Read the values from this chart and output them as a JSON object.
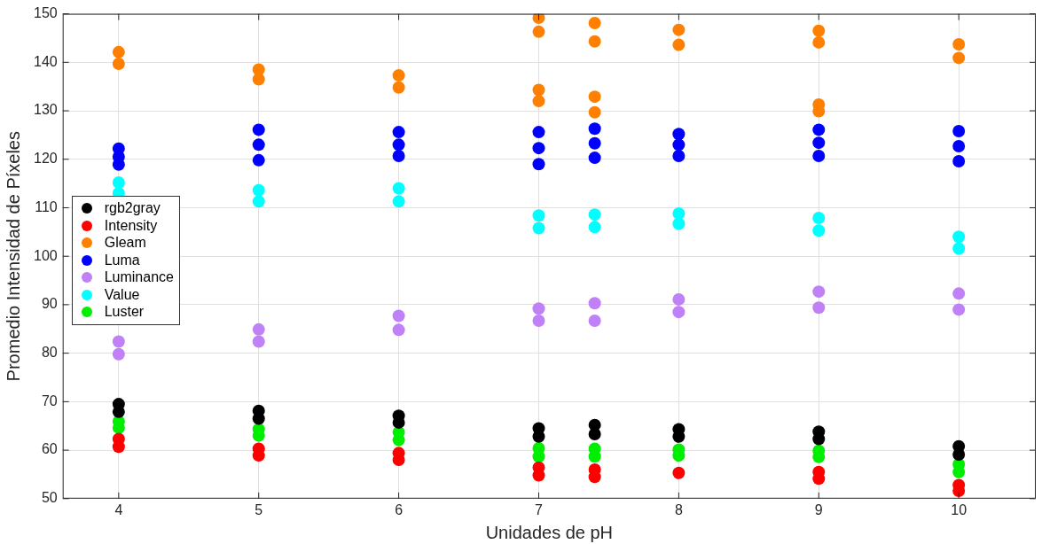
{
  "chart_data": {
    "type": "scatter",
    "xlabel": "Unidades de pH",
    "ylabel": "Promedio Intensidad de Píxeles",
    "xlim": [
      3.6,
      10.55
    ],
    "ylim": [
      50,
      150
    ],
    "xticks": [
      4,
      5,
      6,
      7,
      8,
      9,
      10
    ],
    "yticks": [
      50,
      60,
      70,
      80,
      90,
      100,
      110,
      120,
      130,
      140,
      150
    ],
    "grid": true,
    "legend": "left",
    "marker": "circle",
    "series": [
      {
        "name": "rgb2gray",
        "color": "#000000",
        "x": [
          4,
          4,
          5,
          5,
          6,
          6,
          7,
          7,
          7.4,
          7.4,
          8,
          8,
          9,
          9,
          10,
          10
        ],
        "values": [
          69.5,
          67.9,
          68.1,
          66.5,
          67.1,
          65.7,
          64.5,
          62.8,
          65.2,
          63.3,
          64.3,
          62.8,
          63.8,
          62.3,
          60.8,
          59.1
        ]
      },
      {
        "name": "Intensity",
        "color": "#ff0000",
        "x": [
          4,
          4,
          5,
          5,
          6,
          6,
          7,
          7,
          7.4,
          7.4,
          8,
          9,
          9,
          10,
          10
        ],
        "values": [
          62.3,
          60.7,
          60.3,
          58.9,
          59.4,
          58.0,
          56.4,
          54.8,
          56.0,
          54.5,
          55.3,
          55.5,
          54.1,
          52.8,
          51.6
        ]
      },
      {
        "name": "Gleam",
        "color": "#ff8000",
        "x": [
          4,
          4,
          5,
          5,
          6,
          6,
          7,
          7,
          7,
          7,
          7.4,
          7.4,
          7.4,
          7.4,
          8,
          8,
          9,
          9,
          9,
          9,
          10,
          10
        ],
        "values": [
          142.1,
          139.7,
          138.5,
          136.5,
          137.3,
          134.8,
          149.2,
          146.3,
          134.3,
          132.0,
          148.1,
          144.3,
          132.9,
          129.7,
          146.7,
          143.6,
          146.5,
          144.1,
          131.3,
          129.9,
          143.7,
          140.9
        ]
      },
      {
        "name": "Luma",
        "color": "#0000ff",
        "x": [
          4,
          4,
          4,
          5,
          5,
          5,
          6,
          6,
          6,
          7,
          7,
          7,
          7.4,
          7.4,
          7.4,
          8,
          8,
          8,
          9,
          9,
          9,
          10,
          10,
          10
        ],
        "values": [
          122.2,
          120.5,
          118.9,
          126.1,
          123,
          119.8,
          125.6,
          123,
          120.7,
          125.6,
          122.3,
          119.0,
          126.3,
          123.3,
          120.3,
          125.2,
          123,
          120.7,
          126.1,
          123.4,
          120.7,
          125.8,
          122.7,
          119.6
        ]
      },
      {
        "name": "Luminance",
        "color": "#c080f8",
        "x": [
          4,
          4,
          5,
          5,
          6,
          6,
          7,
          7,
          7.4,
          7.4,
          8,
          8,
          9,
          9,
          10,
          10
        ],
        "values": [
          82.4,
          79.8,
          84.9,
          82.4,
          87.7,
          84.8,
          89.2,
          86.7,
          90.3,
          86.7,
          91.1,
          88.5,
          92.7,
          89.4,
          92.3,
          89.0
        ]
      },
      {
        "name": "Value",
        "color": "#00ffff",
        "x": [
          4,
          4,
          5,
          5,
          6,
          6,
          7,
          7,
          7.4,
          7.4,
          8,
          8,
          9,
          9,
          10,
          10
        ],
        "values": [
          115.2,
          113.0,
          113.6,
          111.3,
          114.0,
          111.3,
          108.4,
          105.8,
          108.6,
          106.0,
          108.8,
          106.7,
          107.9,
          105.3,
          104.0,
          101.6
        ]
      },
      {
        "name": "Luster",
        "color": "#00ee00",
        "x": [
          4,
          4,
          5,
          5,
          6,
          6,
          7,
          7,
          7.4,
          7.4,
          8,
          8,
          9,
          9,
          10,
          10
        ],
        "values": [
          65.9,
          64.6,
          64.3,
          63.0,
          63.7,
          62.1,
          60.4,
          58.7,
          60.3,
          58.7,
          60.1,
          58.9,
          59.9,
          58.6,
          57.1,
          55.5
        ]
      }
    ]
  }
}
